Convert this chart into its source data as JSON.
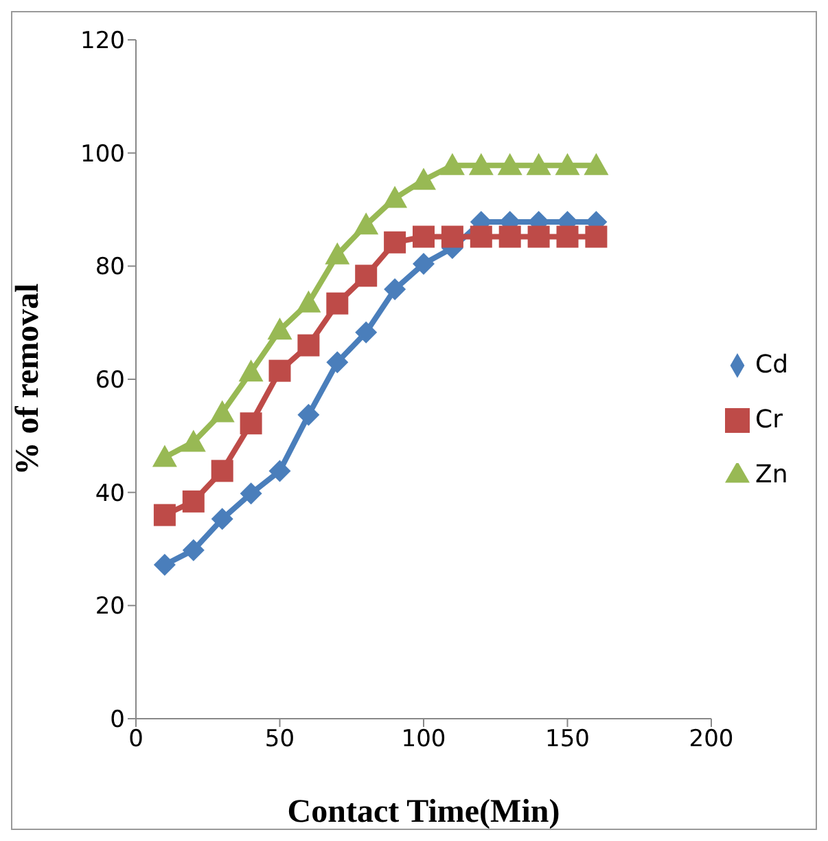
{
  "chart_data": {
    "type": "line",
    "xlabel": "Contact Time(Min)",
    "ylabel": "% of removal",
    "x": [
      10,
      20,
      30,
      40,
      50,
      60,
      70,
      80,
      90,
      100,
      110,
      120,
      130,
      140,
      150,
      160
    ],
    "series": [
      {
        "name": "Cd",
        "color": "#4a7ebb",
        "marker": "diamond",
        "values": [
          27.2,
          29.8,
          35.3,
          39.8,
          43.8,
          53.7,
          63,
          68.3,
          75.9,
          80.4,
          83.2,
          87.8,
          87.8,
          87.8,
          87.8,
          87.8
        ]
      },
      {
        "name": "Cr",
        "color": "#be4b48",
        "marker": "square",
        "values": [
          36,
          38.4,
          43.8,
          52.2,
          61.5,
          66,
          73.4,
          78.3,
          84.2,
          85.2,
          85.2,
          85.2,
          85.2,
          85.2,
          85.2,
          85.2
        ]
      },
      {
        "name": "Zn",
        "color": "#98b954",
        "marker": "triangle",
        "values": [
          46.2,
          48.9,
          54.1,
          61.3,
          68.7,
          73.5,
          82,
          87.3,
          92,
          95.2,
          97.8,
          97.8,
          97.8,
          97.8,
          97.8,
          97.8
        ]
      }
    ],
    "xlim": [
      0,
      200
    ],
    "xticks": [
      0,
      50,
      100,
      150,
      200
    ],
    "ylim": [
      0,
      120
    ],
    "yticks": [
      0,
      20,
      40,
      60,
      80,
      100,
      120
    ],
    "grid": false,
    "legend": "right"
  }
}
